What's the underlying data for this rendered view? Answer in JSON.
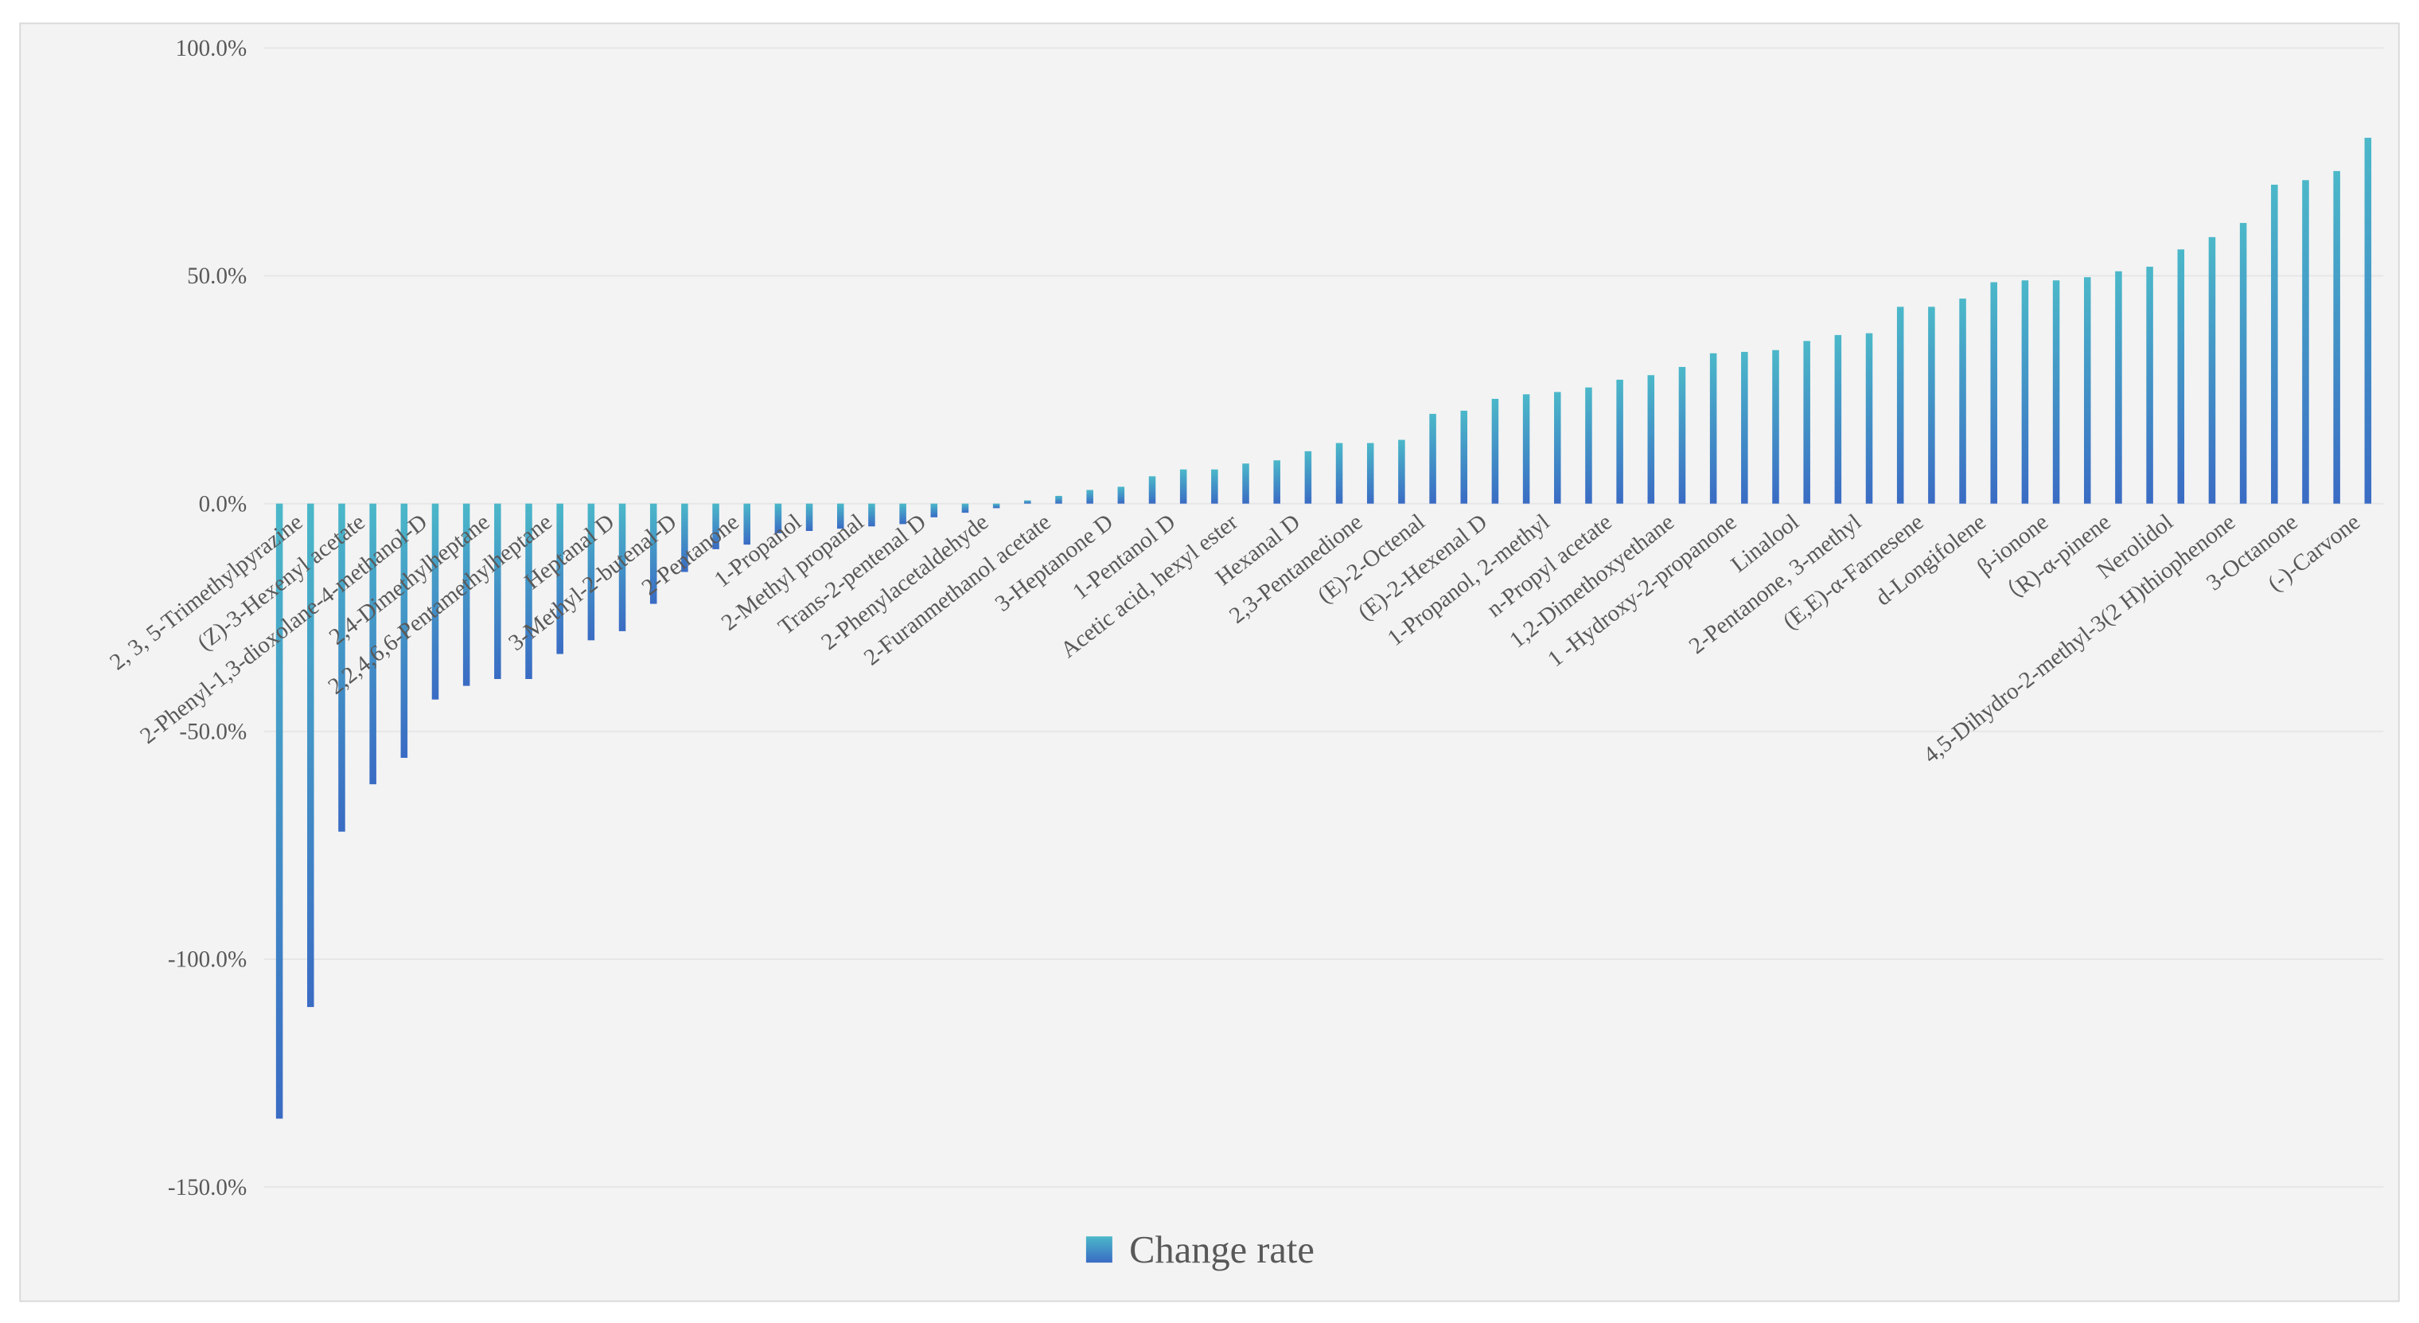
{
  "chart_data": {
    "type": "bar",
    "categories": [
      "2, 3, 5-Trimethylpyrazine",
      null,
      "(Z)-3-Hexenyl acetate",
      null,
      "2-Phenyl-1,3-dioxolane-4-methanol-D",
      null,
      "2,4-Dimethylheptane",
      null,
      "2,2,4,6,6-Pentamethylheptane",
      null,
      "Heptanal D",
      null,
      "3-Methyl-2-butenal-D",
      null,
      "2-Pentanone",
      null,
      "1-Propanol",
      null,
      "2-Methyl propanal",
      null,
      "Trans-2-pentenal D",
      null,
      "2-Phenylacetaldehyde",
      null,
      "2-Furanmethanol acetate",
      null,
      "3-Heptanone D",
      null,
      "1-Pentanol D",
      null,
      "Acetic acid, hexyl ester",
      null,
      "Hexanal D",
      null,
      "2,3-Pentanedione",
      null,
      "(E)-2-Octenal",
      null,
      "(E)-2-Hexenal D",
      null,
      "1-Propanol, 2-methyl",
      null,
      "n-Propyl acetate",
      null,
      "1,2-Dimethoxyethane",
      null,
      "1 -Hydroxy-2-propanone",
      null,
      "Linalool",
      null,
      "2-Pentanone, 3-methyl",
      null,
      "(E,E)-α-Farnesene",
      null,
      "d-Longifolene",
      null,
      "β-ionone",
      null,
      "（R)-α-pinene",
      null,
      "Nerolidol",
      null,
      "4,5-Dihydro-2-methyl-3(2 H)thiophenone",
      null,
      "3-Octanone",
      null,
      "(-)-Carvone",
      null
    ],
    "series": [
      {
        "name": "Change rate",
        "color": "#3d7fc6",
        "values": [
          -135,
          -110.5,
          -72,
          -61.6,
          -55.8,
          -43,
          -40,
          -38.5,
          -38.5,
          -33,
          -30,
          -28,
          -22,
          -15,
          -10,
          -9,
          -6.5,
          -6,
          -5.5,
          -5,
          -4.5,
          -3,
          -2,
          -1,
          0.7,
          1.7,
          3,
          3.7,
          6,
          7.5,
          7.5,
          8.8,
          9.5,
          11.5,
          13.3,
          13.3,
          14,
          19.7,
          20.4,
          23,
          24,
          24.5,
          25.5,
          27.2,
          28.2,
          30,
          33,
          33.3,
          33.7,
          35.7,
          37,
          37.4,
          43.2,
          43.2,
          45,
          48.6,
          49,
          49,
          49.7,
          51,
          52,
          55.8,
          58.5,
          61.6,
          70,
          71,
          73,
          80.3
        ]
      }
    ],
    "ylim": [
      -150,
      100
    ],
    "yticks": [
      {
        "value": -150,
        "label": "-150.0%"
      },
      {
        "value": -100,
        "label": "-100.0%"
      },
      {
        "value": -50,
        "label": "-50.0%"
      },
      {
        "value": 0,
        "label": "0.0%"
      },
      {
        "value": 50,
        "label": "50.0%"
      },
      {
        "value": 100,
        "label": "100.0%"
      }
    ],
    "grid": true,
    "legend": "bottom"
  }
}
